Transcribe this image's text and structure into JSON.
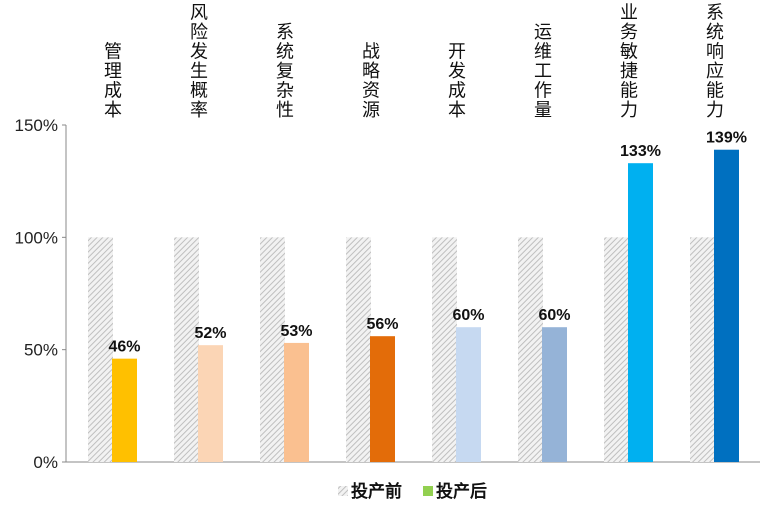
{
  "chart_data": {
    "type": "bar",
    "categories": [
      "管理成本",
      "风险发生概率",
      "系统复杂性",
      "战略资源",
      "开发成本",
      "运维工作量",
      "业务敏捷能力",
      "系统响应能力"
    ],
    "series": [
      {
        "name": "投产前",
        "values": [
          100,
          100,
          100,
          100,
          100,
          100,
          100,
          100
        ],
        "color": "#d9d9d9",
        "pattern": "diagonal-hatch"
      },
      {
        "name": "投产后",
        "values": [
          46,
          52,
          53,
          56,
          60,
          60,
          133,
          139
        ],
        "colors": [
          "#FFC000",
          "#FBD5B5",
          "#FAC090",
          "#E36C09",
          "#C6D9F1",
          "#95B3D7",
          "#00B0F0",
          "#0070C0"
        ],
        "legend_color": "#92D050"
      }
    ],
    "data_labels": [
      "46%",
      "52%",
      "53%",
      "56%",
      "60%",
      "60%",
      "133%",
      "139%"
    ],
    "yticks": [
      "0%",
      "50%",
      "100%",
      "150%"
    ],
    "ylim": [
      0,
      150
    ],
    "grid": false,
    "legend_position": "bottom"
  }
}
